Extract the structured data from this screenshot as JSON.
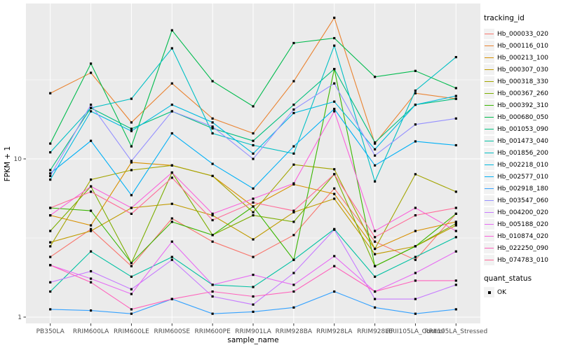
{
  "figure": {
    "xlabel": "sample_name",
    "ylabel": "FPKM + 1",
    "legend": {
      "tracking_title": "tracking_id",
      "quant_title": "quant_status",
      "quant_label": "OK"
    },
    "colors": {
      "panel_bg": "#EBEBEB",
      "grid": "#FFFFFF",
      "axis_text": "#4D4D4D",
      "tick": "#333333",
      "key_bg": "#F2F2F2",
      "point": "#000000"
    }
  },
  "chart_data": {
    "type": "line",
    "title": "",
    "xlabel": "sample_name",
    "ylabel": "FPKM + 1",
    "yscale": "log10",
    "yticks": [
      1,
      10
    ],
    "ytick_labels": [
      "1",
      "10"
    ],
    "ylim": [
      0.85,
      95
    ],
    "grid": true,
    "legend_position": "right",
    "point_shape": "black-square",
    "categories": [
      "PB350LA",
      "RRIM600LA",
      "RRIM600LE",
      "RRIM600SE",
      "RRIM600PE",
      "RRIM901LA",
      "RRIM928BA",
      "RRIM928LA",
      "RRIM928LE",
      "RRII105LA_Control",
      "RRII105LA_Stressed"
    ],
    "series": [
      {
        "name": "Hb_000033_020",
        "color": "#F8766D",
        "values": [
          2.4,
          3.6,
          2.1,
          4.2,
          3.0,
          2.4,
          3.3,
          6.5,
          3.0,
          2.3,
          4.5
        ]
      },
      {
        "name": "Hb_000116_010",
        "color": "#EA8331",
        "values": [
          26,
          35,
          17,
          30,
          18,
          14.5,
          31,
          78,
          12.5,
          26,
          24
        ]
      },
      {
        "name": "Hb_000213_100",
        "color": "#D89000",
        "values": [
          4.4,
          3.8,
          9.5,
          9.1,
          7.8,
          5.0,
          6.9,
          6.0,
          2.7,
          3.5,
          4.0
        ]
      },
      {
        "name": "Hb_000307_030",
        "color": "#C09B00",
        "values": [
          2.97,
          3.5,
          4.9,
          5.2,
          4.4,
          3.1,
          4.6,
          5.6,
          2.5,
          2.8,
          3.8
        ]
      },
      {
        "name": "Hb_000318_330",
        "color": "#A3A500",
        "values": [
          2.8,
          7.4,
          8.5,
          9.1,
          7.8,
          4.6,
          9.2,
          8.6,
          2.7,
          8.0,
          6.2
        ]
      },
      {
        "name": "Hb_000367_260",
        "color": "#7CAE00",
        "values": [
          3.5,
          6.7,
          2.2,
          8.2,
          3.3,
          4.4,
          4.0,
          8.0,
          2.1,
          2.8,
          3.9
        ]
      },
      {
        "name": "Hb_000392_310",
        "color": "#39B600",
        "values": [
          4.9,
          4.7,
          2.2,
          4.0,
          3.3,
          5.0,
          2.3,
          37,
          2.1,
          2.8,
          4.5
        ]
      },
      {
        "name": "Hb_000680_050",
        "color": "#00BB4E",
        "values": [
          12.5,
          40,
          12,
          65,
          31,
          21.5,
          54,
          58,
          33,
          36,
          28
        ]
      },
      {
        "name": "Hb_001053_090",
        "color": "#00BF7D",
        "values": [
          8.5,
          21,
          15.5,
          20,
          15.6,
          13,
          22,
          37,
          12.7,
          22,
          24
        ]
      },
      {
        "name": "Hb_001473_040",
        "color": "#00C1A3",
        "values": [
          1.45,
          2.6,
          1.8,
          2.4,
          1.6,
          1.55,
          2.3,
          3.6,
          1.8,
          2.4,
          3.2
        ]
      },
      {
        "name": "Hb_001856_200",
        "color": "#00BFC4",
        "values": [
          11,
          21,
          24,
          50,
          14.5,
          12.2,
          10.8,
          52,
          7.2,
          27,
          44
        ]
      },
      {
        "name": "Hb_002218_010",
        "color": "#00BAE0",
        "values": [
          7.4,
          20,
          15,
          22,
          17,
          10.8,
          19.5,
          23,
          11.5,
          22,
          25
        ]
      },
      {
        "name": "Hb_002577_010",
        "color": "#00B0F6",
        "values": [
          8.1,
          13,
          5.9,
          14.5,
          9.3,
          6.5,
          12,
          20.7,
          9.1,
          12.9,
          12.2
        ]
      },
      {
        "name": "Hb_002918_180",
        "color": "#35A2FF",
        "values": [
          1.12,
          1.1,
          1.05,
          1.3,
          1.05,
          1.08,
          1.15,
          1.45,
          1.15,
          1.05,
          1.12
        ]
      },
      {
        "name": "Hb_003547_060",
        "color": "#9590FF",
        "values": [
          7.8,
          22,
          9.7,
          20,
          16,
          10,
          20.5,
          30,
          10.5,
          16.5,
          18
        ]
      },
      {
        "name": "Hb_004200_020",
        "color": "#C77CFF",
        "values": [
          1.66,
          1.95,
          1.5,
          2.3,
          1.35,
          1.2,
          1.9,
          3.57,
          1.3,
          1.3,
          1.6
        ]
      },
      {
        "name": "Hb_005188_020",
        "color": "#E76BF3",
        "values": [
          2.13,
          1.75,
          1.4,
          3.0,
          1.6,
          1.85,
          1.6,
          2.43,
          1.45,
          1.9,
          2.6
        ]
      },
      {
        "name": "Hb_010874_020",
        "color": "#FA62DB",
        "values": [
          4.4,
          6.7,
          4.9,
          8.2,
          4.5,
          5.6,
          7.0,
          20,
          3.5,
          4.9,
          3.5
        ]
      },
      {
        "name": "Hb_022250_090",
        "color": "#FF62BC",
        "values": [
          2.13,
          1.66,
          1.12,
          1.3,
          1.45,
          1.35,
          1.45,
          2.1,
          1.45,
          1.7,
          1.7
        ]
      },
      {
        "name": "Hb_074783_010",
        "color": "#FF6A98",
        "values": [
          4.9,
          6.2,
          4.5,
          7.6,
          4.1,
          5.3,
          4.7,
          8.0,
          3.2,
          4.4,
          4.9
        ]
      }
    ]
  }
}
